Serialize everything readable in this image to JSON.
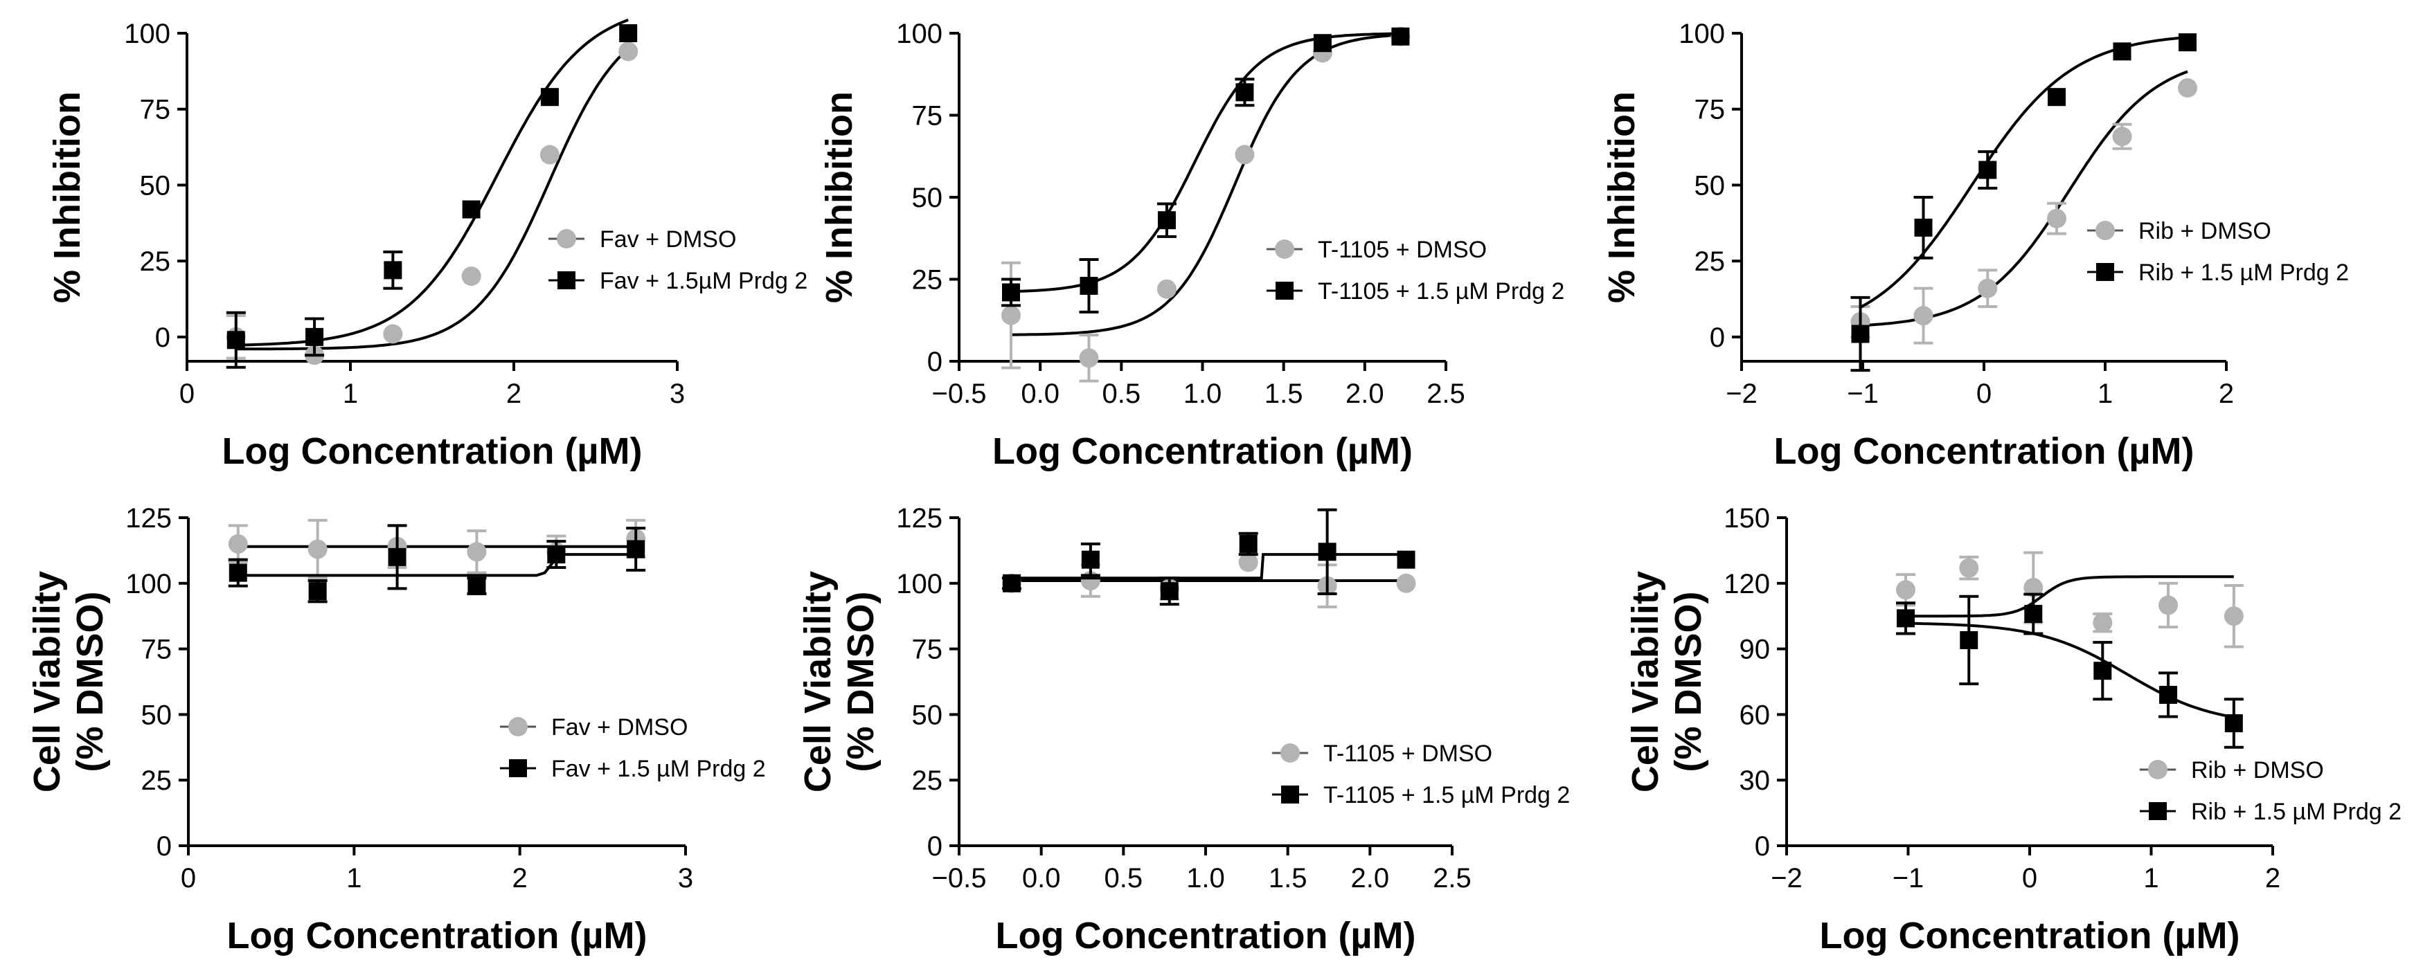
{
  "figure": {
    "series_colors": {
      "dmso": "#b3b3b3",
      "prdg": "#000000"
    }
  },
  "chart_data": [
    {
      "type": "line",
      "id": "inhibition-fav",
      "xlabel": "Log Concentration (µM)",
      "ylabel": [
        "% Inhibition"
      ],
      "xlim": [
        0,
        3
      ],
      "ylim": [
        -8,
        100
      ],
      "xticks": [
        0,
        1,
        2,
        3
      ],
      "xtick_labels": [
        "0",
        "1",
        "2",
        "3"
      ],
      "yticks": [
        0,
        25,
        50,
        75,
        100
      ],
      "ytick_labels": [
        "0",
        "25",
        "50",
        "75",
        "100"
      ],
      "legend_position": "right",
      "series": [
        {
          "name": "Fav + DMSO",
          "color": "#b3b3b3",
          "marker": "circle",
          "x": [
            0.3,
            0.78,
            1.26,
            1.74,
            2.22,
            2.7
          ],
          "y": [
            0,
            -6,
            1,
            20,
            60,
            94
          ],
          "err": [
            7,
            0,
            0,
            0,
            0,
            0
          ],
          "fit": {
            "bottom": -4,
            "top": 107,
            "logEC50": 2.22,
            "hill": 1.9
          }
        },
        {
          "name": "Fav + 1.5µM Prdg 2",
          "color": "#000000",
          "marker": "square",
          "x": [
            0.3,
            0.78,
            1.26,
            1.74,
            2.22,
            2.7
          ],
          "y": [
            -1,
            0,
            22,
            42,
            79,
            100
          ],
          "err": [
            9,
            6,
            6,
            0,
            0,
            0
          ],
          "fit": {
            "bottom": -3,
            "top": 110,
            "logEC50": 1.9,
            "hill": 1.6
          }
        }
      ]
    },
    {
      "type": "line",
      "id": "inhibition-t1105",
      "xlabel": "Log Concentration (µM)",
      "ylabel": [
        "% Inhibition"
      ],
      "xlim": [
        -0.5,
        2.5
      ],
      "ylim": [
        0,
        100
      ],
      "xticks": [
        -0.5,
        0,
        0.5,
        1,
        1.5,
        2,
        2.5
      ],
      "xtick_labels": [
        "−0.5",
        "0.0",
        "0.5",
        "1.0",
        "1.5",
        "2.0",
        "2.5"
      ],
      "yticks": [
        0,
        25,
        50,
        75,
        100
      ],
      "ytick_labels": [
        "0",
        "25",
        "50",
        "75",
        "100"
      ],
      "legend_position": "right",
      "series": [
        {
          "name": "T-1105 + DMSO",
          "color": "#b3b3b3",
          "marker": "circle",
          "x": [
            -0.18,
            0.3,
            0.78,
            1.26,
            1.74,
            2.22
          ],
          "y": [
            14,
            1,
            22,
            63,
            94,
            99
          ],
          "err": [
            16,
            7,
            0,
            0,
            0,
            0
          ],
          "fit": {
            "bottom": 8,
            "top": 100,
            "logEC50": 1.2,
            "hill": 2.2
          }
        },
        {
          "name": "T-1105 + 1.5 µM Prdg 2",
          "color": "#000000",
          "marker": "square",
          "x": [
            -0.18,
            0.3,
            0.78,
            1.26,
            1.74,
            2.22
          ],
          "y": [
            21,
            23,
            43,
            82,
            97,
            99
          ],
          "err": [
            4,
            8,
            5,
            4,
            0,
            0
          ],
          "fit": {
            "bottom": 21,
            "top": 100,
            "logEC50": 0.95,
            "hill": 2.2
          }
        }
      ]
    },
    {
      "type": "line",
      "id": "inhibition-rib",
      "xlabel": "Log Concentration (µM)",
      "ylabel": [
        "% Inhibition"
      ],
      "xlim": [
        -2,
        2
      ],
      "ylim": [
        -8,
        100
      ],
      "xticks": [
        -2,
        -1,
        0,
        1,
        2
      ],
      "xtick_labels": [
        "−2",
        "−1",
        "0",
        "1",
        "2"
      ],
      "yticks": [
        0,
        25,
        50,
        75,
        100
      ],
      "ytick_labels": [
        "0",
        "25",
        "50",
        "75",
        "100"
      ],
      "legend_position": "right",
      "series": [
        {
          "name": "Rib + DMSO",
          "color": "#b3b3b3",
          "marker": "circle",
          "x": [
            -1.02,
            -0.5,
            0.03,
            0.6,
            1.14,
            1.68
          ],
          "y": [
            5,
            7,
            16,
            39,
            66,
            82
          ],
          "err": [
            5,
            9,
            6,
            5,
            4,
            0
          ],
          "fit": {
            "bottom": 3,
            "top": 93,
            "logEC50": 0.7,
            "hill": 1.2
          }
        },
        {
          "name": "Rib + 1.5 µM Prdg 2",
          "color": "#000000",
          "marker": "square",
          "x": [
            -1.02,
            -0.5,
            0.03,
            0.6,
            1.14,
            1.68
          ],
          "y": [
            1,
            36,
            55,
            79,
            94,
            97
          ],
          "err": [
            12,
            10,
            6,
            0,
            0,
            0
          ],
          "fit": {
            "bottom": 0,
            "top": 100,
            "logEC50": -0.1,
            "hill": 1.05
          }
        }
      ]
    },
    {
      "type": "line",
      "id": "viability-fav",
      "xlabel": "Log Concentration (µM)",
      "ylabel": [
        "Cell Viability",
        "(% DMSO)"
      ],
      "xlim": [
        0,
        3
      ],
      "ylim": [
        0,
        125
      ],
      "xticks": [
        0,
        1,
        2,
        3
      ],
      "xtick_labels": [
        "0",
        "1",
        "2",
        "3"
      ],
      "yticks": [
        0,
        25,
        50,
        75,
        100,
        125
      ],
      "ytick_labels": [
        "0",
        "25",
        "50",
        "75",
        "100",
        "125"
      ],
      "legend_position": "lower-right",
      "series": [
        {
          "name": "Fav + DMSO",
          "color": "#b3b3b3",
          "marker": "circle",
          "x": [
            0.3,
            0.78,
            1.26,
            1.74,
            2.22,
            2.7
          ],
          "y": [
            115,
            113,
            114,
            112,
            112,
            117
          ],
          "err": [
            7,
            11,
            8,
            8,
            6,
            7
          ],
          "fit_line": [
            [
              0.3,
              114
            ],
            [
              2.7,
              114
            ]
          ]
        },
        {
          "name": "Fav + 1.5 µM Prdg 2",
          "color": "#000000",
          "marker": "square",
          "x": [
            0.3,
            0.78,
            1.26,
            1.74,
            2.22,
            2.7
          ],
          "y": [
            104,
            97,
            110,
            99,
            111,
            113
          ],
          "err": [
            5,
            4,
            12,
            3,
            5,
            8
          ],
          "fit_line": [
            [
              0.3,
              103
            ],
            [
              2.1,
              103
            ],
            [
              2.15,
              104
            ],
            [
              2.2,
              108
            ],
            [
              2.25,
              111
            ],
            [
              2.7,
              111
            ]
          ]
        }
      ]
    },
    {
      "type": "line",
      "id": "viability-t1105",
      "xlabel": "Log Concentration (µM)",
      "ylabel": [
        "Cell Viability",
        "(% DMSO)"
      ],
      "xlim": [
        -0.5,
        2.5
      ],
      "ylim": [
        0,
        125
      ],
      "xticks": [
        -0.5,
        0,
        0.5,
        1,
        1.5,
        2,
        2.5
      ],
      "xtick_labels": [
        "−0.5",
        "0.0",
        "0.5",
        "1.0",
        "1.5",
        "2.0",
        "2.5"
      ],
      "yticks": [
        0,
        25,
        50,
        75,
        100,
        125
      ],
      "ytick_labels": [
        "0",
        "25",
        "50",
        "75",
        "100",
        "125"
      ],
      "legend_position": "lower-right",
      "series": [
        {
          "name": "T-1105 + DMSO",
          "color": "#b3b3b3",
          "marker": "circle",
          "x": [
            -0.18,
            0.3,
            0.78,
            1.26,
            1.74,
            2.22
          ],
          "y": [
            100,
            101,
            98,
            108,
            99,
            100
          ],
          "err": [
            2,
            6,
            4,
            0,
            8,
            0
          ],
          "fit_line": [
            [
              -0.18,
              101
            ],
            [
              2.22,
              101
            ]
          ]
        },
        {
          "name": "T-1105 + 1.5 µM Prdg 2",
          "color": "#000000",
          "marker": "square",
          "x": [
            -0.18,
            0.3,
            0.78,
            1.26,
            1.74,
            2.22
          ],
          "y": [
            100,
            109,
            97,
            115,
            112,
            109
          ],
          "err": [
            2,
            6,
            5,
            4,
            16,
            0
          ],
          "fit_line": [
            [
              -0.18,
              102
            ],
            [
              1.34,
              102
            ],
            [
              1.35,
              111
            ],
            [
              2.22,
              111
            ]
          ]
        }
      ]
    },
    {
      "type": "line",
      "id": "viability-rib",
      "xlabel": "Log Concentration (µM)",
      "ylabel": [
        "Cell Viability",
        "(% DMSO)"
      ],
      "xlim": [
        -2,
        2
      ],
      "ylim": [
        0,
        150
      ],
      "xticks": [
        -2,
        -1,
        0,
        1,
        2
      ],
      "xtick_labels": [
        "−2",
        "−1",
        "0",
        "1",
        "2"
      ],
      "yticks": [
        0,
        30,
        60,
        90,
        120,
        150
      ],
      "ytick_labels": [
        "0",
        "30",
        "60",
        "90",
        "120",
        "150"
      ],
      "legend_position": "lower-right",
      "series": [
        {
          "name": "Rib + DMSO",
          "color": "#b3b3b3",
          "marker": "circle",
          "x": [
            -1.02,
            -0.5,
            0.03,
            0.6,
            1.14,
            1.68
          ],
          "y": [
            117,
            127,
            118,
            102,
            110,
            105
          ],
          "err": [
            7,
            5,
            16,
            4,
            10,
            14
          ],
          "fit": {
            "bottom": 105,
            "top": 123,
            "logEC50": 0.1,
            "hill": 4
          }
        },
        {
          "name": "Rib + 1.5 µM Prdg 2",
          "color": "#000000",
          "marker": "square",
          "x": [
            -1.02,
            -0.5,
            0.03,
            0.6,
            1.14,
            1.68
          ],
          "y": [
            104,
            94,
            106,
            80,
            69,
            56
          ],
          "err": [
            7,
            20,
            9,
            13,
            10,
            11
          ],
          "fit": {
            "bottom": 55,
            "top": 102,
            "logEC50": 0.8,
            "hill": -1.2
          }
        }
      ]
    }
  ]
}
